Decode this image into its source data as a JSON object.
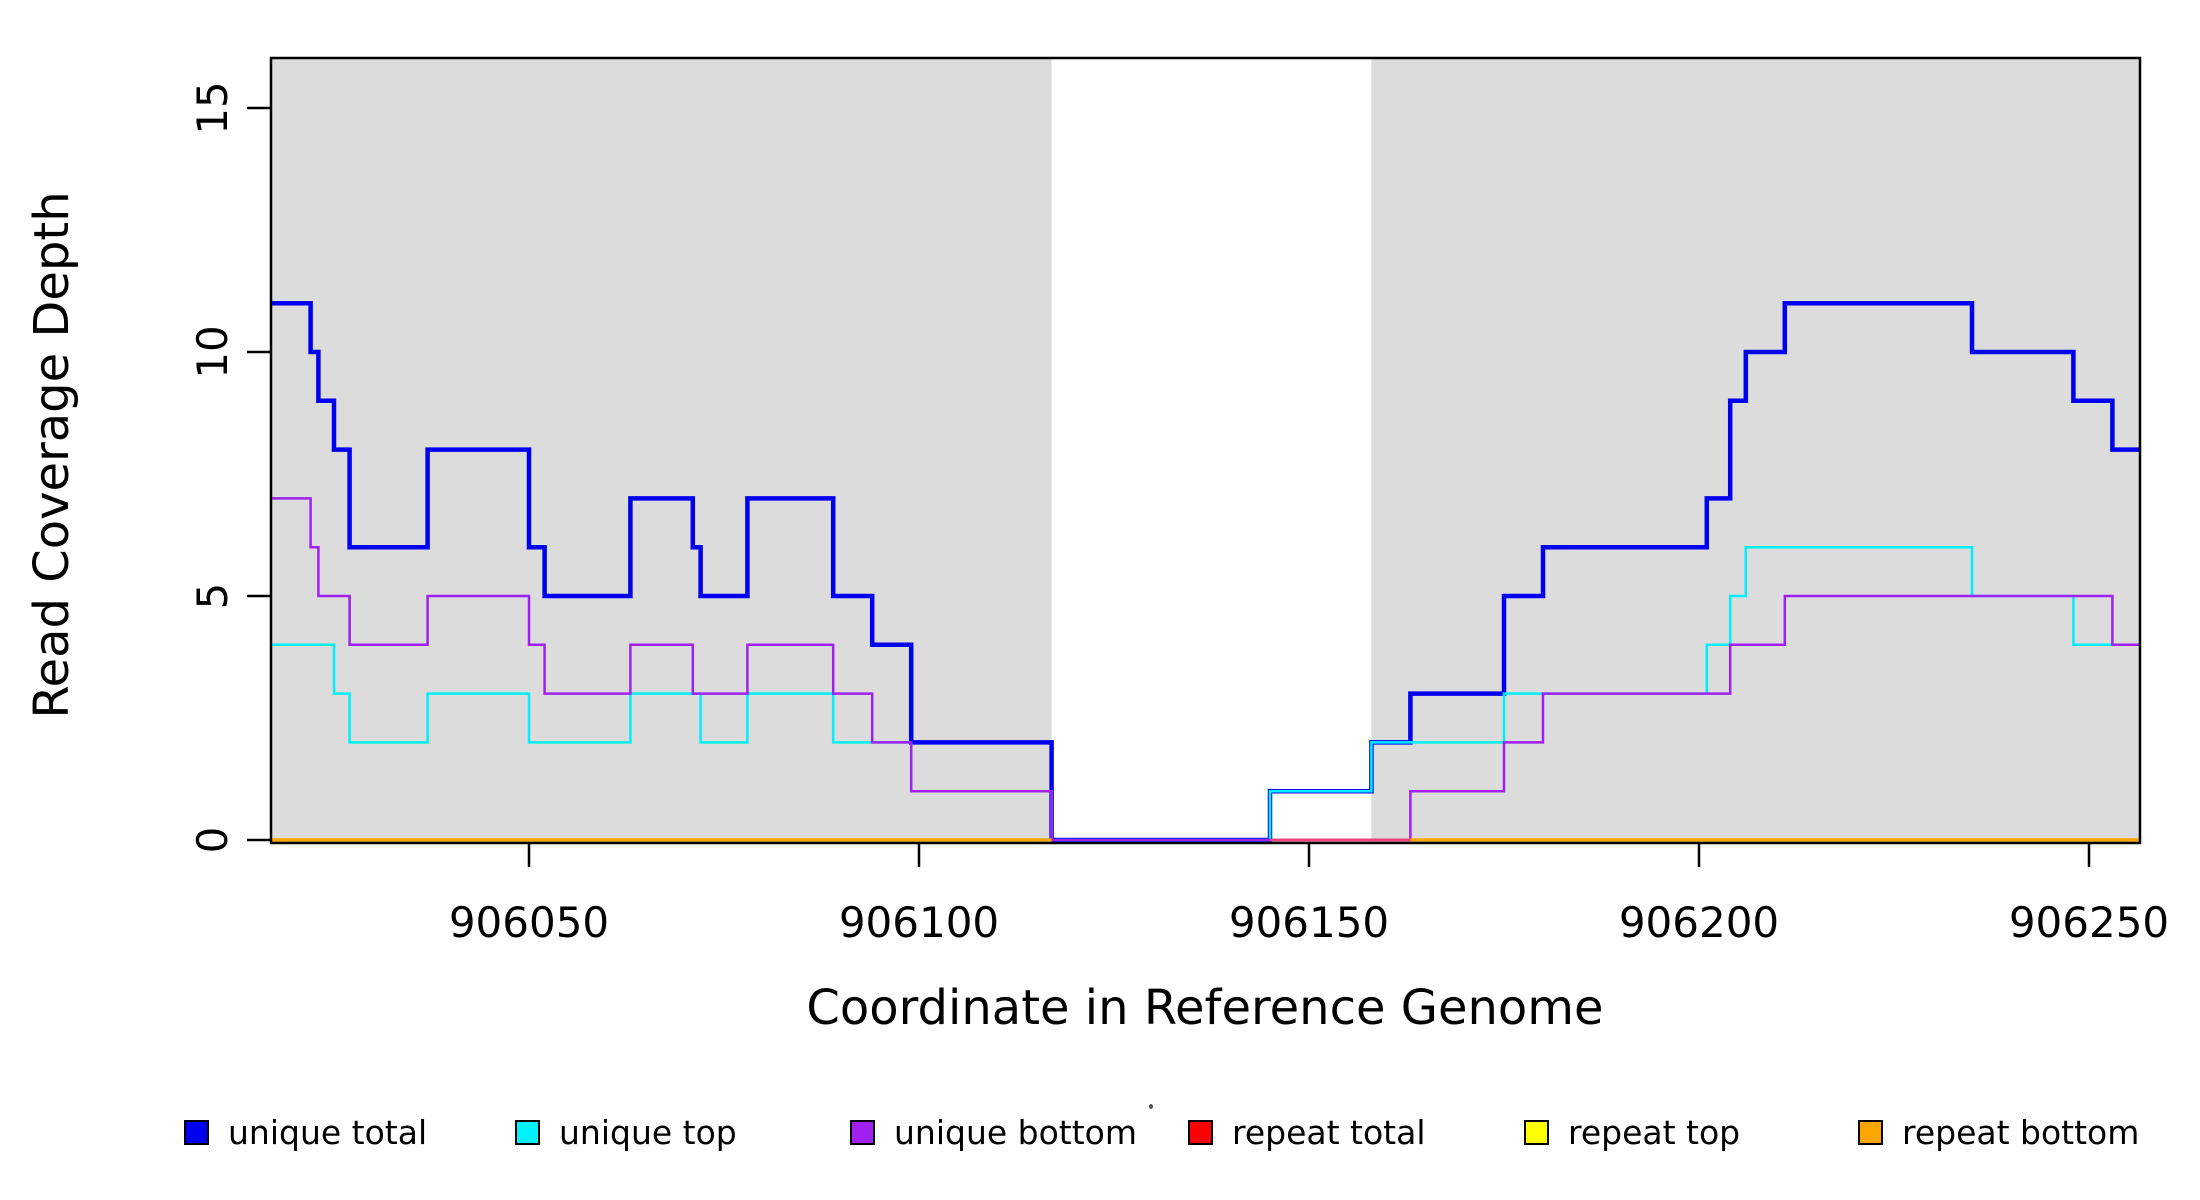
{
  "chart_data": {
    "type": "line",
    "subtype": "step-after-coverage-plot",
    "title": "",
    "xlabel": "Coordinate in Reference Genome",
    "ylabel": "Read Coverage Depth",
    "xlim": [
      906016,
      906257
    ],
    "ylim": [
      0,
      16
    ],
    "grid": false,
    "legend_position": "bottom",
    "x_ticks": [
      {
        "value": 906050,
        "label": "906050"
      },
      {
        "value": 906100,
        "label": "906100"
      },
      {
        "value": 906150,
        "label": "906150"
      },
      {
        "value": 906200,
        "label": "906200"
      },
      {
        "value": 906250,
        "label": "906250"
      }
    ],
    "y_ticks": [
      {
        "value": 0,
        "label": "0"
      },
      {
        "value": 5,
        "label": "5"
      },
      {
        "value": 10,
        "label": "10"
      },
      {
        "value": 15,
        "label": "15"
      }
    ],
    "shaded_regions": {
      "color": "#DCDCDC",
      "comment": "covered reference intervals; white gap = uncovered",
      "ranges": [
        [
          906016,
          906117
        ],
        [
          906158,
          906257
        ]
      ]
    },
    "series": [
      {
        "name": "unique total",
        "color": "#0000F0",
        "line_width": 4.5,
        "end": 906257,
        "steps": [
          [
            906016,
            11
          ],
          [
            906022,
            10
          ],
          [
            906023,
            9
          ],
          [
            906025,
            8
          ],
          [
            906027,
            6
          ],
          [
            906037,
            8
          ],
          [
            906050,
            6
          ],
          [
            906052,
            5
          ],
          [
            906063,
            7
          ],
          [
            906071,
            6
          ],
          [
            906072,
            5
          ],
          [
            906078,
            7
          ],
          [
            906089,
            5
          ],
          [
            906094,
            4
          ],
          [
            906099,
            2
          ],
          [
            906117,
            0
          ],
          [
            906145,
            1
          ],
          [
            906158,
            2
          ],
          [
            906163,
            3
          ],
          [
            906175,
            5
          ],
          [
            906180,
            6
          ],
          [
            906201,
            7
          ],
          [
            906204,
            9
          ],
          [
            906206,
            10
          ],
          [
            906211,
            11
          ],
          [
            906235,
            10
          ],
          [
            906248,
            9
          ],
          [
            906253,
            8
          ]
        ]
      },
      {
        "name": "unique top",
        "color": "#00EFFF",
        "line_width": 2.5,
        "end": 906257,
        "steps": [
          [
            906016,
            4
          ],
          [
            906025,
            3
          ],
          [
            906027,
            2
          ],
          [
            906037,
            3
          ],
          [
            906050,
            2
          ],
          [
            906063,
            3
          ],
          [
            906072,
            2
          ],
          [
            906078,
            3
          ],
          [
            906089,
            2
          ],
          [
            906099,
            1
          ],
          [
            906117,
            0
          ],
          [
            906145,
            1
          ],
          [
            906158,
            2
          ],
          [
            906175,
            3
          ],
          [
            906201,
            4
          ],
          [
            906204,
            5
          ],
          [
            906206,
            6
          ],
          [
            906235,
            5
          ],
          [
            906248,
            4
          ]
        ]
      },
      {
        "name": "unique bottom",
        "color": "#A020F0",
        "line_width": 2.5,
        "end": 906257,
        "steps": [
          [
            906016,
            7
          ],
          [
            906022,
            6
          ],
          [
            906023,
            5
          ],
          [
            906027,
            4
          ],
          [
            906037,
            5
          ],
          [
            906050,
            4
          ],
          [
            906052,
            3
          ],
          [
            906063,
            4
          ],
          [
            906071,
            3
          ],
          [
            906078,
            4
          ],
          [
            906089,
            3
          ],
          [
            906094,
            2
          ],
          [
            906099,
            1
          ],
          [
            906117,
            0
          ],
          [
            906163,
            1
          ],
          [
            906175,
            2
          ],
          [
            906180,
            3
          ],
          [
            906204,
            4
          ],
          [
            906211,
            5
          ],
          [
            906253,
            4
          ]
        ]
      },
      {
        "name": "repeat total",
        "color": "#FF0000",
        "render_color": "#E8447E",
        "line_width": 3,
        "value": 0,
        "zero_segments": [
          [
            906145,
            906163
          ]
        ]
      },
      {
        "name": "repeat top",
        "color": "#FFFF00",
        "line_width": 3,
        "value": 0,
        "zero_segments": []
      },
      {
        "name": "repeat bottom",
        "color": "#FFA500",
        "line_width": 3.5,
        "value": 0,
        "zero_segments": [
          [
            906016,
            906117
          ],
          [
            906163,
            906257
          ]
        ]
      }
    ],
    "legend": [
      {
        "label": "unique total",
        "color": "#0000F0"
      },
      {
        "label": "unique top",
        "color": "#00F2FF"
      },
      {
        "label": "unique bottom",
        "color": "#A020F0"
      },
      {
        "label": "repeat total",
        "color": "#FF0000"
      },
      {
        "label": "repeat top",
        "color": "#FFFF00"
      },
      {
        "label": "repeat bottom",
        "color": "#FFA500"
      }
    ]
  }
}
